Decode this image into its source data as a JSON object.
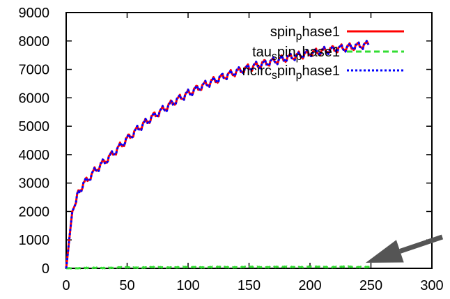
{
  "chart_data": {
    "type": "line",
    "title": "",
    "xlabel": "",
    "ylabel": "",
    "xlim": [
      0,
      300
    ],
    "ylim": [
      0,
      9000
    ],
    "xticks": [
      0,
      50,
      100,
      150,
      200,
      250,
      300
    ],
    "yticks": [
      0,
      1000,
      2000,
      3000,
      4000,
      5000,
      6000,
      7000,
      8000,
      9000
    ],
    "grid": false,
    "legend_position": "top-right",
    "series": [
      {
        "name": "spin_phase1",
        "legend_parts": [
          {
            "t": "spin",
            "s": "base"
          },
          {
            "t": "p",
            "s": "sub"
          },
          {
            "t": "hase1",
            "s": "base"
          }
        ],
        "color": "#ff0000",
        "style": "solid",
        "x": [
          0,
          2,
          5,
          8,
          10,
          15,
          20,
          25,
          30,
          40,
          50,
          60,
          70,
          80,
          90,
          100,
          110,
          120,
          130,
          140,
          150,
          160,
          170,
          180,
          190,
          200,
          210,
          220,
          230,
          240,
          245,
          248
        ],
        "y": [
          0,
          800,
          2000,
          2300,
          2700,
          3000,
          3250,
          3500,
          3700,
          4100,
          4550,
          4950,
          5300,
          5600,
          5900,
          6150,
          6380,
          6580,
          6760,
          6920,
          7060,
          7180,
          7290,
          7390,
          7480,
          7570,
          7640,
          7710,
          7770,
          7830,
          7860,
          7870
        ]
      },
      {
        "name": "tau_spin_phase1",
        "legend_parts": [
          {
            "t": "tau",
            "s": "base"
          },
          {
            "t": "s",
            "s": "sub"
          },
          {
            "t": "pin",
            "s": "base"
          },
          {
            "t": "p",
            "s": "sub"
          },
          {
            "t": "hase1",
            "s": "base"
          }
        ],
        "color": "#33dd33",
        "style": "dashed",
        "x": [
          0,
          50,
          100,
          150,
          200,
          250
        ],
        "y": [
          0,
          30,
          40,
          45,
          50,
          50
        ]
      },
      {
        "name": "ncircspin_phase1",
        "legend_parts": [
          {
            "t": "ncirc",
            "s": "base"
          },
          {
            "t": "s",
            "s": "sub"
          },
          {
            "t": "pin",
            "s": "base"
          },
          {
            "t": "p",
            "s": "sub"
          },
          {
            "t": "hase1",
            "s": "base"
          }
        ],
        "color": "#0000ff",
        "style": "dotted",
        "x": [
          0,
          2,
          5,
          8,
          10,
          15,
          20,
          25,
          30,
          40,
          50,
          60,
          70,
          80,
          90,
          100,
          110,
          120,
          130,
          140,
          150,
          160,
          170,
          180,
          190,
          200,
          210,
          220,
          230,
          240,
          245,
          248
        ],
        "y": [
          0,
          800,
          2000,
          2300,
          2700,
          3000,
          3250,
          3500,
          3700,
          4100,
          4550,
          4950,
          5300,
          5600,
          5900,
          6150,
          6380,
          6580,
          6760,
          6920,
          7060,
          7180,
          7290,
          7390,
          7480,
          7570,
          7640,
          7710,
          7770,
          7830,
          7860,
          7870
        ]
      }
    ],
    "annotations": [
      {
        "type": "arrow",
        "color": "#555555",
        "from": [
          300,
          1050
        ],
        "to": [
          255,
          50
        ]
      }
    ]
  }
}
